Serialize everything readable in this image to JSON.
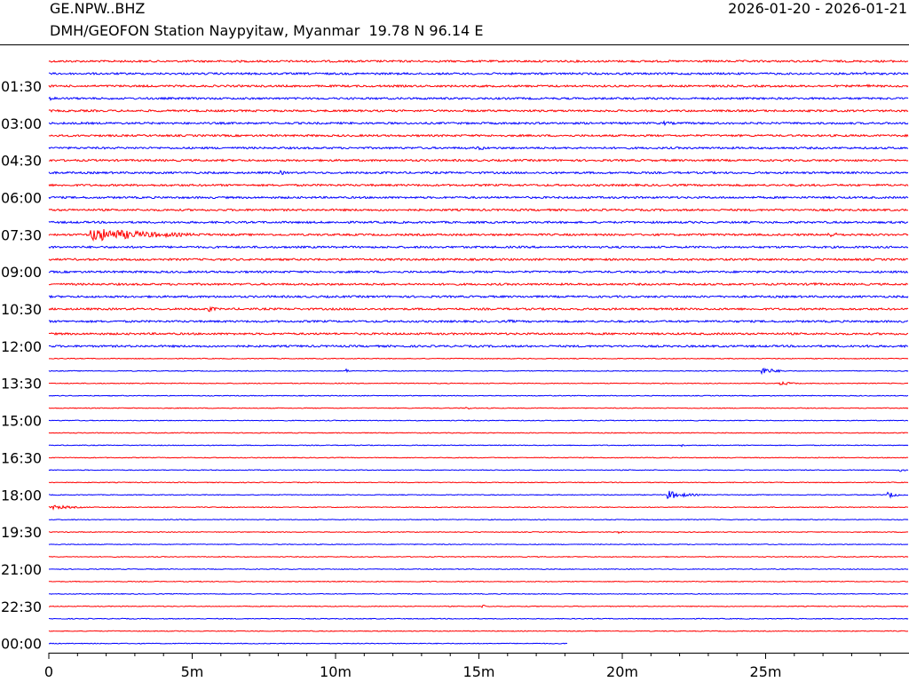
{
  "header": {
    "station_code": "GE.NPW..BHZ",
    "period": "2026-01-20 - 2026-01-21",
    "description": "DMH/GEOFON Station Naypyitaw, Myanmar  19.78 N 96.14 E"
  },
  "chart_data": {
    "type": "line",
    "title": "GE.NPW..BHZ",
    "subtitle": "DMH/GEOFON Station Naypyitaw, Myanmar  19.78 N 96.14 E",
    "xlabel": "",
    "ylabel": "",
    "xlim_minutes": [
      0,
      30
    ],
    "x_tick_labels": [
      "0",
      "5m",
      "10m",
      "15m",
      "20m",
      "25m"
    ],
    "x_tick_values_minutes": [
      0,
      5,
      10,
      15,
      20,
      25
    ],
    "y_tick_labels": [
      "01:30",
      "03:00",
      "04:30",
      "06:00",
      "07:30",
      "09:00",
      "10:30",
      "12:00",
      "13:30",
      "15:00",
      "16:30",
      "18:00",
      "19:30",
      "21:00",
      "22:30",
      "00:00"
    ],
    "y_tick_trace_index": [
      2,
      5,
      8,
      11,
      14,
      17,
      20,
      23,
      26,
      29,
      32,
      35,
      38,
      41,
      44,
      47
    ],
    "trace_count": 48,
    "trace_minutes": 30,
    "last_trace_end_minute": 18.1,
    "trace_colors": [
      "#ff0000",
      "#0000ff"
    ],
    "grid": false,
    "events": [
      {
        "trace": 14,
        "minute": 1.5,
        "amplitude": 8,
        "duration_min": 5.5
      },
      {
        "trace": 14,
        "minute": 27.2,
        "amplitude": 3,
        "duration_min": 1.5
      },
      {
        "trace": 25,
        "minute": 24.9,
        "amplitude": 4,
        "duration_min": 1.2
      },
      {
        "trace": 25,
        "minute": 10.4,
        "amplitude": 2,
        "duration_min": 0.2
      },
      {
        "trace": 35,
        "minute": 21.6,
        "amplitude": 5,
        "duration_min": 1.5
      },
      {
        "trace": 35,
        "minute": 29.3,
        "amplitude": 3.5,
        "duration_min": 0.7
      },
      {
        "trace": 36,
        "minute": 0.0,
        "amplitude": 3,
        "duration_min": 2.0
      },
      {
        "trace": 44,
        "minute": 15.1,
        "amplitude": 2,
        "duration_min": 0.6
      },
      {
        "trace": 20,
        "minute": 5.6,
        "amplitude": 3,
        "duration_min": 0.8
      },
      {
        "trace": 7,
        "minute": 15.0,
        "amplitude": 2.5,
        "duration_min": 1.0
      },
      {
        "trace": 9,
        "minute": 8.1,
        "amplitude": 2.5,
        "duration_min": 0.6
      },
      {
        "trace": 33,
        "minute": 29.7,
        "amplitude": 2,
        "duration_min": 0.5
      },
      {
        "trace": 28,
        "minute": 14.6,
        "amplitude": 1.5,
        "duration_min": 0.5
      },
      {
        "trace": 38,
        "minute": 19.9,
        "amplitude": 1.5,
        "duration_min": 0.4
      },
      {
        "trace": 31,
        "minute": 22.1,
        "amplitude": 1.5,
        "duration_min": 0.2
      },
      {
        "trace": 26,
        "minute": 25.5,
        "amplitude": 2.5,
        "duration_min": 1.2
      },
      {
        "trace": 23,
        "minute": 28.5,
        "amplitude": 2,
        "duration_min": 1.0
      },
      {
        "trace": 5,
        "minute": 21.5,
        "amplitude": 2,
        "duration_min": 1.5
      },
      {
        "trace": 21,
        "minute": 16.0,
        "amplitude": 2,
        "duration_min": 1.5
      },
      {
        "trace": 1,
        "minute": 28.5,
        "amplitude": 2,
        "duration_min": 1.5
      },
      {
        "trace": 2,
        "minute": 28.5,
        "amplitude": 2,
        "duration_min": 1.5
      },
      {
        "trace": 18,
        "minute": 26.5,
        "amplitude": 2,
        "duration_min": 2.5
      },
      {
        "trace": 3,
        "minute": 0.0,
        "amplitude": 2,
        "duration_min": 2.0
      }
    ]
  }
}
